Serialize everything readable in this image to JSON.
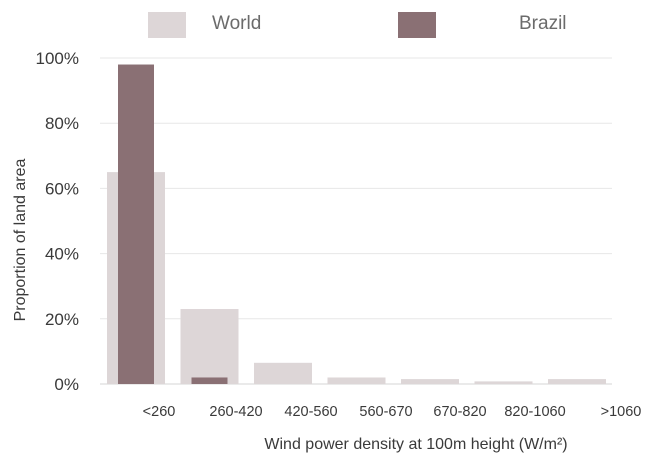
{
  "chart_data": {
    "type": "bar",
    "categories": [
      "<260",
      "260-420",
      "420-560",
      "560-670",
      "670-820",
      "820-1060",
      ">1060"
    ],
    "series": [
      {
        "name": "World",
        "color": "#ddd6d7",
        "values": [
          65,
          23,
          6.5,
          2,
          1.5,
          0.8,
          1.5
        ]
      },
      {
        "name": "Brazil",
        "color": "#8a7074",
        "values": [
          98,
          2,
          0,
          0,
          0,
          0,
          0
        ]
      }
    ],
    "ylim": [
      0,
      100
    ],
    "yticks": [
      0,
      20,
      40,
      60,
      80,
      100
    ],
    "ytick_labels": [
      "0%",
      "20%",
      "40%",
      "60%",
      "80%",
      "100%"
    ],
    "ylabel": "Proportion of land area",
    "xlabel": "Wind power density at 100m height (W/m²)",
    "grid": true,
    "legend_position": "top"
  }
}
